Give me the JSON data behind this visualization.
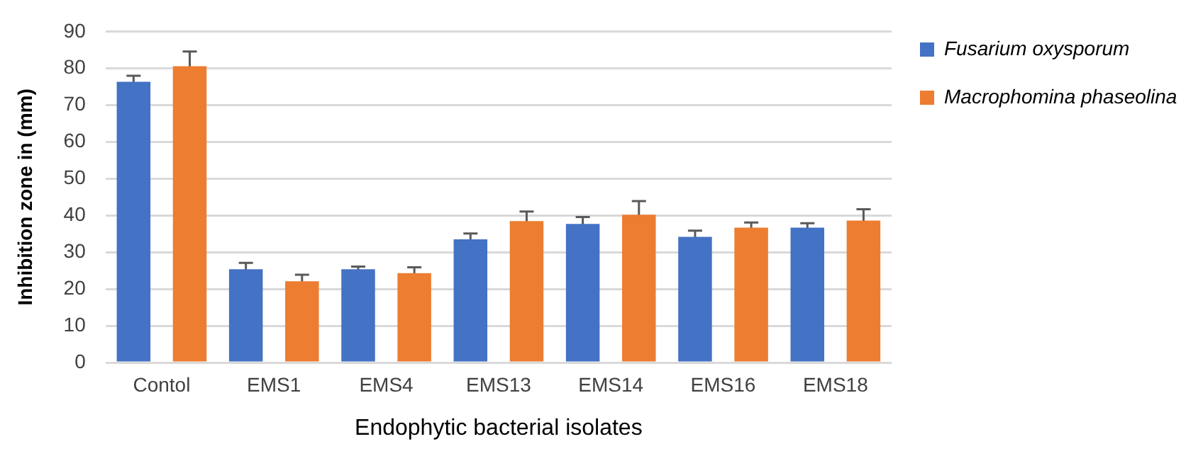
{
  "chart_data": {
    "type": "bar",
    "xlabel": "Endophytic bacterial isolates",
    "ylabel": "Inhibition zone in (mm)",
    "categories": [
      "Contol",
      "EMS1",
      "EMS4",
      "EMS13",
      "EMS14",
      "EMS16",
      "EMS18"
    ],
    "series": [
      {
        "name": "Fusarium oxysporum",
        "color": "#4472c4",
        "values": [
          76.4,
          25.4,
          25.4,
          33.5,
          37.7,
          34.2,
          36.7
        ],
        "errors": [
          1.6,
          1.7,
          0.7,
          1.6,
          1.9,
          1.7,
          1.2
        ]
      },
      {
        "name": "Macrophomina phaseolina",
        "color": "#ed7d31",
        "values": [
          80.6,
          22.1,
          24.3,
          38.5,
          40.2,
          36.7,
          38.6
        ],
        "errors": [
          4,
          1.8,
          1.6,
          2.6,
          3.7,
          1.4,
          3.1
        ]
      }
    ],
    "ylim": [
      0,
      90
    ],
    "yticks": [
      0,
      10,
      20,
      30,
      40,
      50,
      60,
      70,
      80,
      90
    ],
    "grid": "y",
    "legend": "right"
  }
}
